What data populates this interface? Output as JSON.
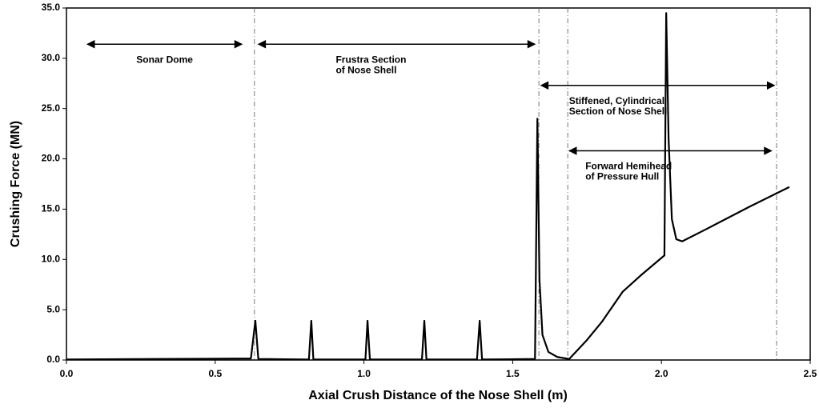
{
  "chart_data": {
    "type": "line",
    "x_label": "Axial Crush Distance of the Nose Shell (m)",
    "y_label": "Crushing Force (MN)",
    "xlim": [
      0,
      2.5
    ],
    "ylim": [
      0,
      35
    ],
    "xticks": [
      {
        "value": 0,
        "label": "0.0"
      },
      0.5,
      {
        "value": 1,
        "label": "1.0"
      },
      1.5,
      {
        "value": 2,
        "label": "2.0"
      },
      2.5
    ],
    "yticks": [
      {
        "value": 0,
        "label": "0.0"
      },
      {
        "value": 5,
        "label": "5.0"
      },
      {
        "value": 10,
        "label": "10.0"
      },
      {
        "value": 15,
        "label": "15.0"
      },
      {
        "value": 20,
        "label": "20.0"
      },
      {
        "value": 25,
        "label": "25.0"
      },
      {
        "value": 30,
        "label": "30.0"
      },
      {
        "value": 35,
        "label": "35.0"
      }
    ],
    "grid": false,
    "series": [
      {
        "color": "#000000",
        "x": [
          0,
          0.3,
          0.62,
          0.635,
          0.645,
          0.815,
          0.823,
          0.83,
          1.005,
          1.012,
          1.02,
          1.195,
          1.203,
          1.21,
          1.38,
          1.389,
          1.397,
          1.575,
          1.583,
          1.59,
          1.6,
          1.62,
          1.65,
          1.69,
          1.75,
          1.8,
          1.87,
          1.93,
          2.01,
          2.016,
          2.024,
          2.035,
          2.05,
          2.07,
          2.15,
          2.3,
          2.43
        ],
        "values": [
          0.05,
          0.1,
          0.15,
          3.9,
          0.1,
          0.05,
          3.9,
          0.05,
          0.05,
          3.9,
          0.05,
          0.05,
          3.9,
          0.05,
          0.05,
          3.9,
          0.05,
          0.1,
          24,
          8,
          2.5,
          0.8,
          0.3,
          0.1,
          2,
          3.8,
          6.8,
          8.4,
          10.4,
          34.5,
          22,
          14,
          12,
          11.8,
          13,
          15.3,
          17.2
        ]
      }
    ],
    "reference_lines": [
      0.632,
      1.588,
      1.685,
      2.387
    ],
    "annotations": [
      {
        "lines": [
          "Sonar Dome"
        ],
        "x_start": 0.07,
        "x_end": 0.59,
        "y": 31.4
      },
      {
        "lines": [
          "Frustra Section",
          "of Nose Shell"
        ],
        "x_start": 0.645,
        "x_end": 1.575,
        "y": 31.4
      },
      {
        "lines": [
          "Stiffened, Cylindrical",
          "Section of Nose Shell"
        ],
        "x_start": 1.595,
        "x_end": 2.38,
        "y": 27.3
      },
      {
        "lines": [
          "Forward Hemihead",
          "of Pressure Hull"
        ],
        "x_start": 1.69,
        "x_end": 2.37,
        "y": 20.8
      }
    ]
  }
}
